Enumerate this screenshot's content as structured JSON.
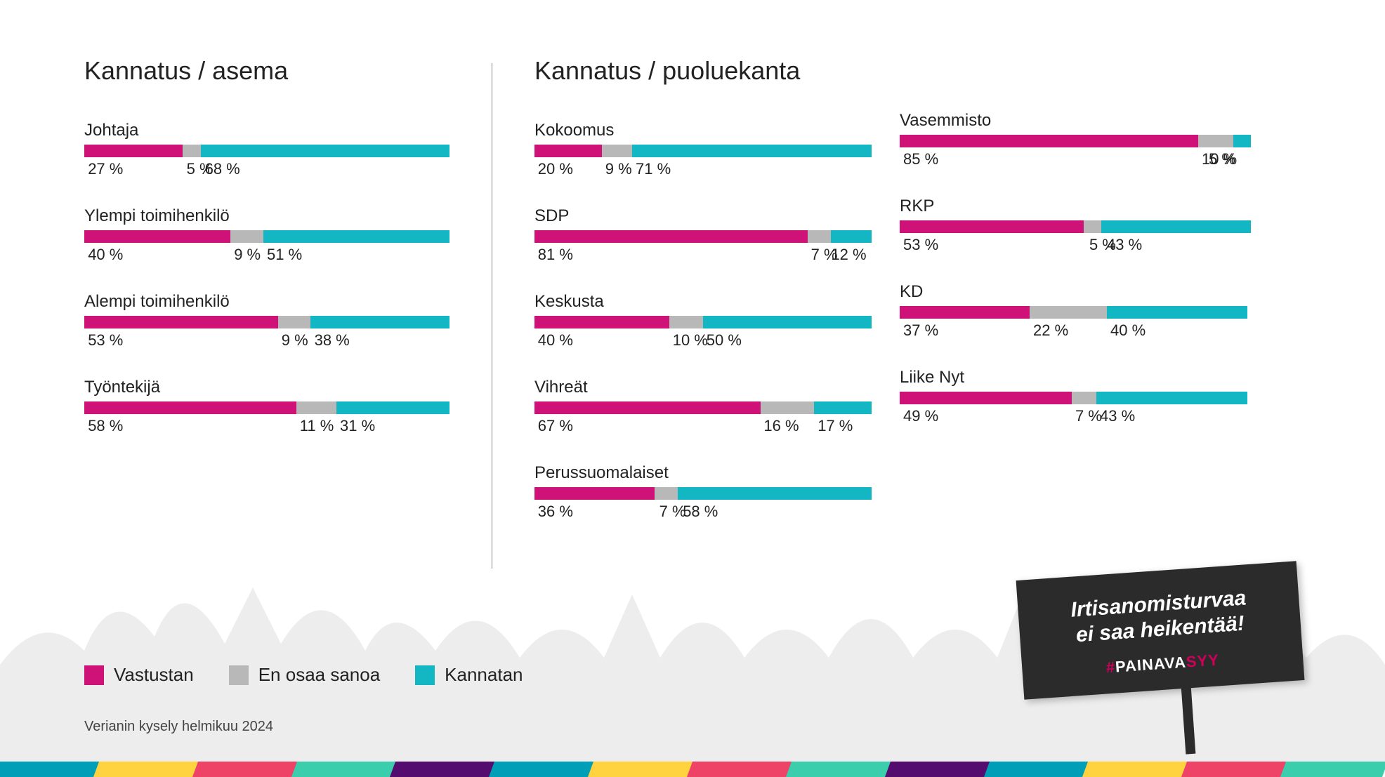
{
  "colors": {
    "oppose": "#cf1278",
    "neutral": "#b8b8b8",
    "support": "#13b7c4",
    "text": "#222222",
    "bg": "#ffffff",
    "crowd": "#ececec",
    "sign_bg": "#2b2b2b",
    "hash_pink": "#d0005a"
  },
  "typography": {
    "title_fontsize": 36,
    "label_fontsize": 24,
    "value_fontsize": 22,
    "legend_fontsize": 26
  },
  "left": {
    "title": "Kannatus / asema",
    "items": [
      {
        "label": "Johtaja",
        "values": [
          27,
          5,
          68
        ]
      },
      {
        "label": "Ylempi toimihenkilö",
        "values": [
          40,
          9,
          51
        ]
      },
      {
        "label": "Alempi toimihenkilö",
        "values": [
          53,
          9,
          38
        ]
      },
      {
        "label": "Työntekijä",
        "values": [
          58,
          11,
          31
        ]
      }
    ]
  },
  "mid": {
    "title": "Kannatus / puoluekanta",
    "items": [
      {
        "label": "Kokoomus",
        "values": [
          20,
          9,
          71
        ]
      },
      {
        "label": "SDP",
        "values": [
          81,
          7,
          12
        ]
      },
      {
        "label": "Keskusta",
        "values": [
          40,
          10,
          50
        ]
      },
      {
        "label": "Vihreät",
        "values": [
          67,
          16,
          17
        ]
      },
      {
        "label": "Perussuomalaiset",
        "values": [
          36,
          7,
          58
        ]
      }
    ]
  },
  "right": {
    "items": [
      {
        "label": "Vasemmisto",
        "values": [
          85,
          10,
          5
        ]
      },
      {
        "label": "RKP",
        "values": [
          53,
          5,
          43
        ]
      },
      {
        "label": "KD",
        "values": [
          37,
          22,
          40
        ]
      },
      {
        "label": "Liike Nyt",
        "values": [
          49,
          7,
          43
        ]
      }
    ]
  },
  "legend": {
    "items": [
      {
        "label": "Vastustan",
        "color_key": "oppose"
      },
      {
        "label": "En osaa sanoa",
        "color_key": "neutral"
      },
      {
        "label": "Kannatan",
        "color_key": "support"
      }
    ]
  },
  "source": "Verianin kysely helmikuu 2024",
  "sign": {
    "line1": "Irtisanomisturvaa",
    "line2": "ei saa heikentää!",
    "hashtag_prefix": "#",
    "hashtag_a": "PAINAVA",
    "hashtag_b": "SYY"
  },
  "footer_colors": [
    "#009fb7",
    "#ffd23f",
    "#ee4266",
    "#3bceac",
    "#540d6e",
    "#009fb7",
    "#ffd23f",
    "#ee4266",
    "#3bceac",
    "#540d6e",
    "#009fb7",
    "#ffd23f",
    "#ee4266",
    "#3bceac"
  ]
}
